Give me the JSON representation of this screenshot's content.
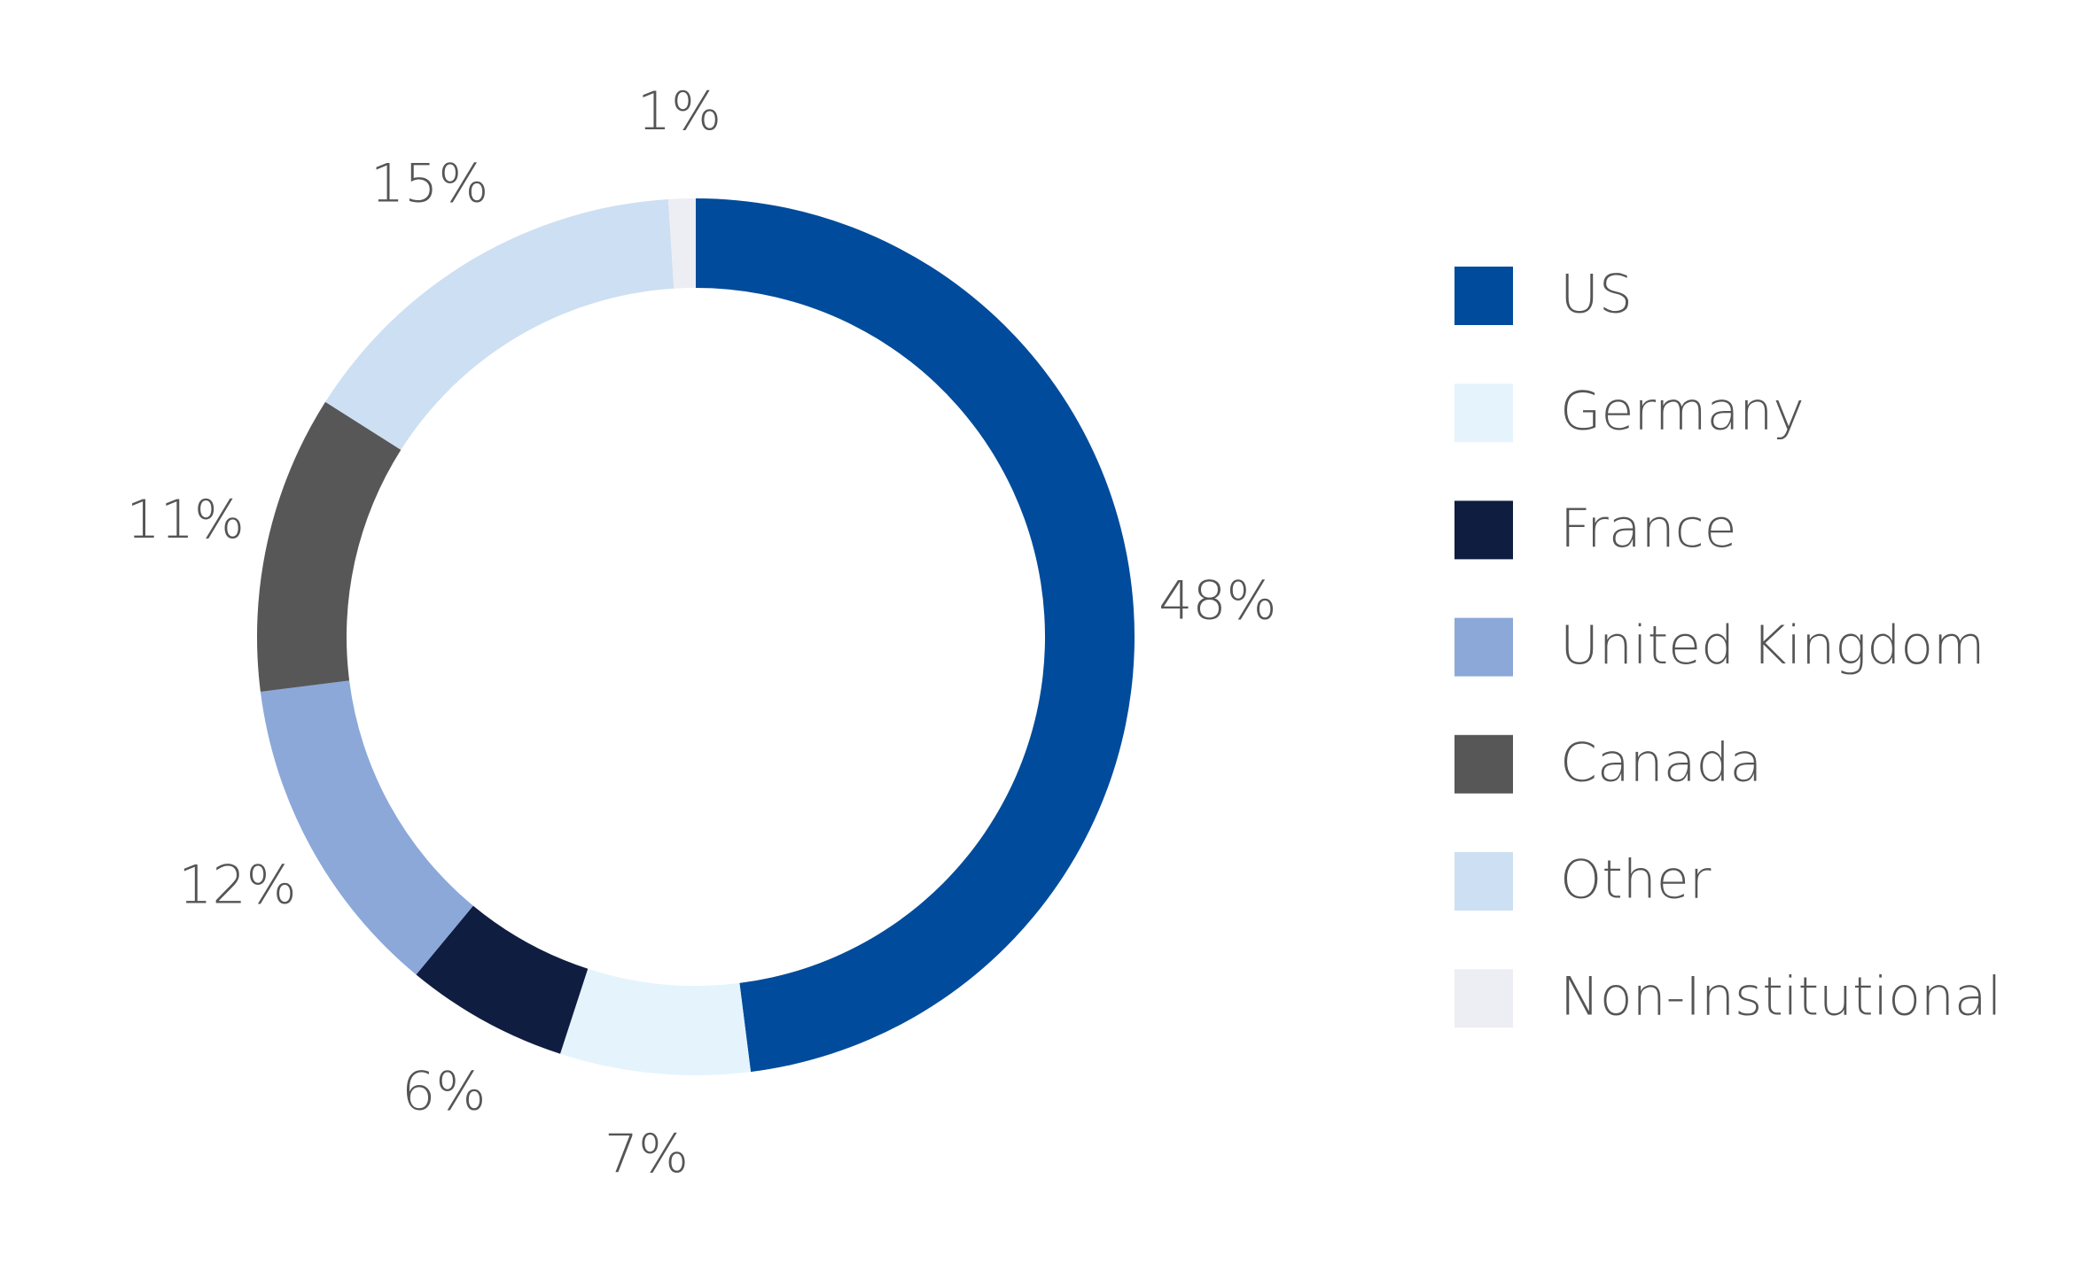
{
  "chart_data": {
    "type": "donut",
    "categories": [
      "US",
      "Germany",
      "France",
      "United Kingdom",
      "Canada",
      "Other",
      "Non-Institutional"
    ],
    "values": [
      48,
      7,
      6,
      12,
      11,
      15,
      1
    ],
    "value_labels": [
      "48%",
      "7%",
      "6%",
      "12%",
      "11%",
      "15%",
      "1%"
    ],
    "colors": [
      "#004b9b",
      "#e5f4fc",
      "#0f1d40",
      "#8ba8d8",
      "#575757",
      "#cddff2",
      "#eceef3"
    ]
  }
}
